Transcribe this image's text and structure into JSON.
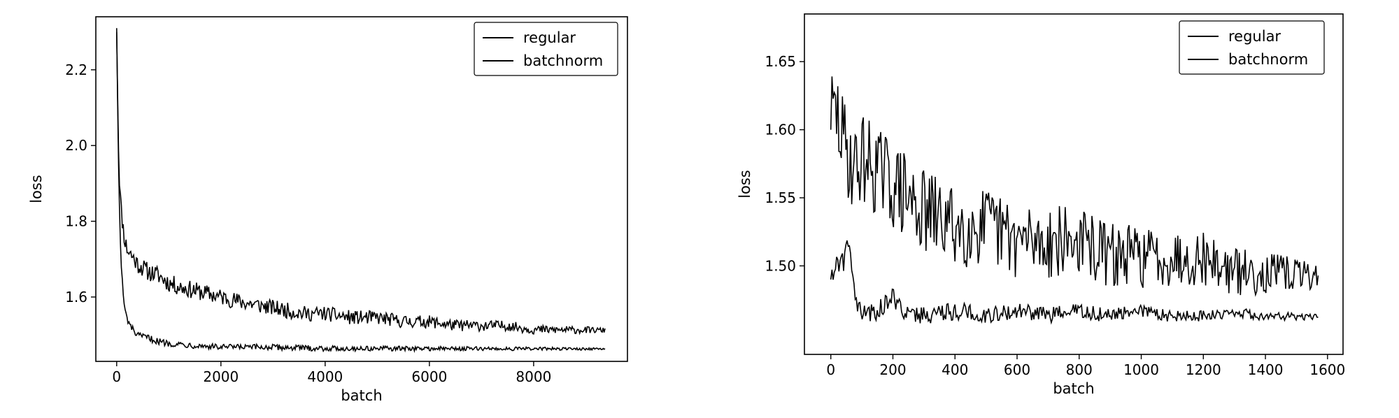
{
  "chart_data": [
    {
      "type": "line",
      "title": "",
      "xlabel": "batch",
      "ylabel": "loss",
      "xlim": [
        -400,
        9800
      ],
      "ylim": [
        1.43,
        2.34
      ],
      "xticks": [
        0,
        2000,
        4000,
        6000,
        8000
      ],
      "xtick_labels": [
        "0",
        "2000",
        "4000",
        "6000",
        "8000"
      ],
      "yticks": [
        1.6,
        1.8,
        2.0,
        2.2
      ],
      "ytick_labels": [
        "1.6",
        "1.8",
        "2.0",
        "2.2"
      ],
      "grid": false,
      "legend": "top-right",
      "series": [
        {
          "name": "regular",
          "color": "#000000",
          "x": [
            0,
            40,
            80,
            120,
            160,
            200,
            300,
            400,
            500,
            600,
            800,
            1000,
            1200,
            1500,
            1800,
            2100,
            2400,
            2800,
            3200,
            3600,
            4000,
            4500,
            5000,
            5500,
            6000,
            6500,
            7000,
            7500,
            8000,
            8500,
            9000,
            9370
          ],
          "y": [
            2.3,
            1.95,
            1.83,
            1.78,
            1.74,
            1.72,
            1.7,
            1.68,
            1.67,
            1.66,
            1.65,
            1.63,
            1.62,
            1.61,
            1.6,
            1.59,
            1.58,
            1.57,
            1.56,
            1.55,
            1.55,
            1.54,
            1.54,
            1.53,
            1.53,
            1.52,
            1.52,
            1.52,
            1.51,
            1.51,
            1.51,
            1.51
          ]
        },
        {
          "name": "batchnorm",
          "color": "#000000",
          "x": [
            0,
            40,
            80,
            120,
            160,
            200,
            260,
            320,
            400,
            600,
            800,
            1000,
            1500,
            2000,
            3000,
            4000,
            5000,
            6000,
            7000,
            8000,
            9000,
            9370
          ],
          "y": [
            2.31,
            1.9,
            1.7,
            1.61,
            1.56,
            1.54,
            1.52,
            1.51,
            1.495,
            1.49,
            1.48,
            1.475,
            1.47,
            1.465,
            1.465,
            1.462,
            1.462,
            1.462,
            1.462,
            1.462,
            1.462,
            1.462
          ]
        }
      ]
    },
    {
      "type": "line",
      "title": "",
      "xlabel": "batch",
      "ylabel": "loss",
      "xlim": [
        -85,
        1650
      ],
      "ylim": [
        1.435,
        1.685
      ],
      "xticks": [
        0,
        200,
        400,
        600,
        800,
        1000,
        1200,
        1400,
        1600
      ],
      "xtick_labels": [
        "0",
        "200",
        "400",
        "600",
        "800",
        "1000",
        "1200",
        "1400",
        "1600"
      ],
      "yticks": [
        1.5,
        1.55,
        1.6,
        1.65
      ],
      "ytick_labels": [
        "1.50",
        "1.55",
        "1.60",
        "1.65"
      ],
      "grid": false,
      "legend": "top-right",
      "series": [
        {
          "name": "regular",
          "color": "#000000",
          "x": [
            0,
            20,
            40,
            60,
            80,
            100,
            150,
            200,
            250,
            300,
            400,
            500,
            600,
            700,
            800,
            900,
            1000,
            1100,
            1200,
            1300,
            1400,
            1500,
            1570
          ],
          "y": [
            1.6,
            1.6,
            1.58,
            1.57,
            1.56,
            1.57,
            1.56,
            1.55,
            1.54,
            1.53,
            1.52,
            1.52,
            1.51,
            1.51,
            1.51,
            1.5,
            1.5,
            1.5,
            1.5,
            1.49,
            1.49,
            1.49,
            1.49
          ]
        },
        {
          "name": "batchnorm",
          "color": "#000000",
          "x": [
            0,
            20,
            40,
            60,
            80,
            100,
            150,
            200,
            250,
            300,
            400,
            500,
            600,
            700,
            800,
            900,
            1000,
            1100,
            1200,
            1300,
            1400,
            1500,
            1570
          ],
          "y": [
            1.49,
            1.5,
            1.5,
            1.52,
            1.47,
            1.462,
            1.465,
            1.475,
            1.462,
            1.462,
            1.465,
            1.462,
            1.465,
            1.462,
            1.465,
            1.462,
            1.465,
            1.462,
            1.462,
            1.465,
            1.462,
            1.462,
            1.462
          ]
        }
      ]
    }
  ]
}
